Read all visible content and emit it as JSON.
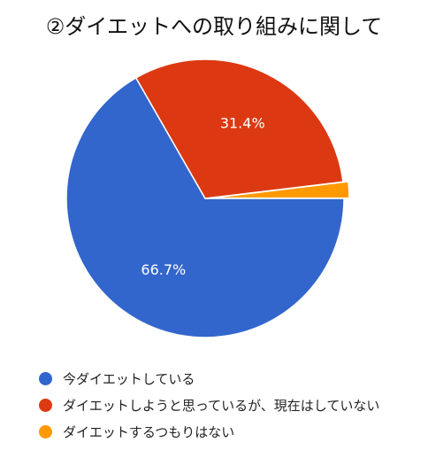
{
  "chart_data": {
    "type": "pie",
    "title": "②ダイエットへの取り組みに関して",
    "slices": [
      {
        "label": "今ダイエットしている",
        "value": 66.7,
        "display": "66.7%",
        "color": "#3366cc"
      },
      {
        "label": "ダイエットしようと思っているが、現在はしていない",
        "value": 31.4,
        "display": "31.4%",
        "color": "#dc3912"
      },
      {
        "label": "ダイエットするつもりはない",
        "value": 1.9,
        "display": "",
        "color": "#ff9900"
      }
    ],
    "legend_position": "bottom"
  }
}
